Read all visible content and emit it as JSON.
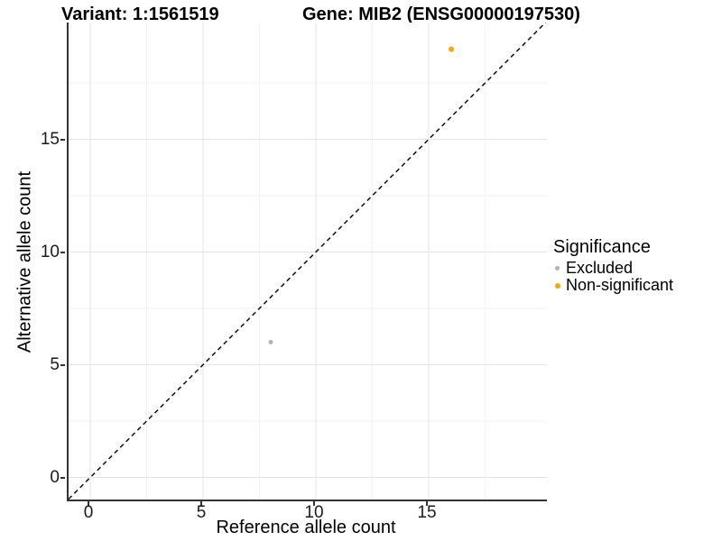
{
  "titles": {
    "variant": "Variant: 1:1561519",
    "gene": "Gene: MIB2 (ENSG00000197530)"
  },
  "axes": {
    "x_label": "Reference allele count",
    "y_label": "Alternative allele count",
    "x_tick_labels": [
      "0",
      "5",
      "10",
      "15"
    ],
    "y_tick_labels": [
      "0",
      "5",
      "10",
      "15"
    ]
  },
  "legend": {
    "title": "Significance",
    "items": [
      {
        "label": "Excluded",
        "color": "#b3b3b3",
        "dot_size": 5
      },
      {
        "label": "Non-significant",
        "color": "#FFA500",
        "dot_size": 6
      }
    ]
  },
  "colors": {
    "axis_line": "#333333",
    "major_grid": "#e4e4e4",
    "minor_grid": "#f2f2f2",
    "identity_line": "#1a1a1a",
    "excluded": "#b3b3b3",
    "non_significant": "#FFA500"
  },
  "chart_data": {
    "type": "scatter",
    "title": "Variant: 1:1561519    Gene: MIB2 (ENSG00000197530)",
    "xlabel": "Reference allele count",
    "ylabel": "Alternative allele count",
    "xlim": [
      -0.9,
      20.2
    ],
    "ylim": [
      -1.0,
      20.2
    ],
    "x_ticks": [
      0,
      5,
      10,
      15
    ],
    "y_ticks": [
      0,
      5,
      10,
      15
    ],
    "minor_tick_step": 2.5,
    "grid": true,
    "reference_line": {
      "type": "identity",
      "slope": 1,
      "intercept": 0,
      "style": "dashed"
    },
    "legend_title": "Significance",
    "legend_position": "right",
    "series": [
      {
        "name": "Excluded",
        "color": "#b3b3b3",
        "point_size": 5,
        "points": [
          {
            "x": 8,
            "y": 6
          }
        ]
      },
      {
        "name": "Non-significant",
        "color": "#FFA500",
        "point_size": 6,
        "points": [
          {
            "x": 16,
            "y": 19
          }
        ]
      }
    ]
  }
}
